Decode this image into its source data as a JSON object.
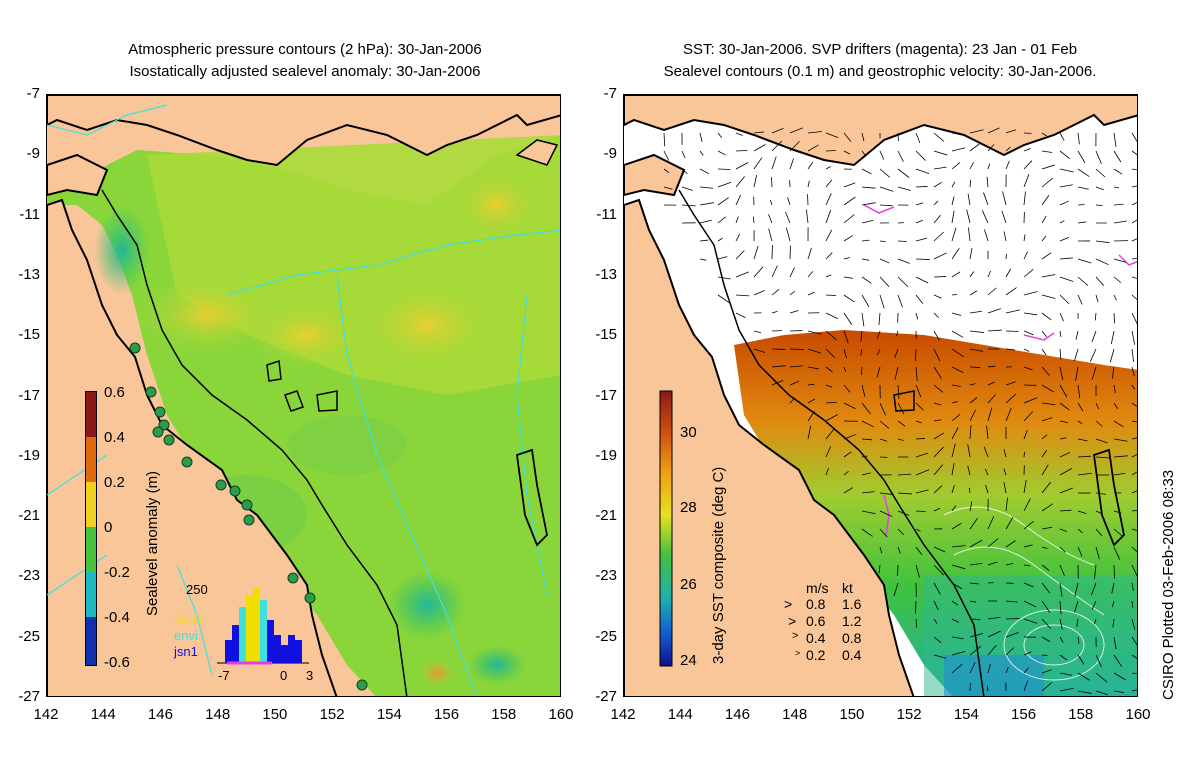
{
  "left_panel": {
    "title_line1": "Atmospheric pressure contours (2 hPa): 30-Jan-2006",
    "title_line2": "Isostatically adjusted sealevel anomaly: 30-Jan-2006",
    "colorbar_label": "Sealevel anomaly (m)",
    "colorbar_ticks": [
      "0.6",
      "0.4",
      "0.2",
      "0",
      "-0.2",
      "-0.4",
      "-0.6"
    ],
    "histogram": {
      "ymax_label": "250",
      "legend": [
        {
          "name": "GFO",
          "color": "#f0e000"
        },
        {
          "name": "envi",
          "color": "#40e0e0"
        },
        {
          "name": "jsn1",
          "color": "#1010e0"
        }
      ],
      "xticks": [
        "-7",
        "0",
        "3"
      ]
    }
  },
  "right_panel": {
    "title_line1": "SST: 30-Jan-2006. SVP drifters (magenta): 23 Jan - 01 Feb",
    "title_line2": "Sealevel contours (0.1 m) and geostrophic velocity: 30-Jan-2006.",
    "colorbar_label": "3-day SST composite (deg C)",
    "colorbar_ticks": [
      "30",
      "28",
      "26",
      "24"
    ],
    "speed_legend": {
      "header_ms": "m/s",
      "header_kt": "kt",
      "rows": [
        {
          "ms": "0.8",
          "kt": "1.6"
        },
        {
          "ms": "0.6",
          "kt": "1.2"
        },
        {
          "ms": "0.4",
          "kt": "0.8"
        },
        {
          "ms": "0.2",
          "kt": "0.4"
        }
      ]
    }
  },
  "axes": {
    "lat_labels": [
      "-7",
      "-9",
      "-11",
      "-13",
      "-15",
      "-17",
      "-19",
      "-21",
      "-23",
      "-25",
      "-27"
    ],
    "lon_labels": [
      "142",
      "144",
      "146",
      "148",
      "150",
      "152",
      "154",
      "156",
      "158",
      "160"
    ]
  },
  "credit": "CSIRO Plotted 03-Feb-2006 08:33",
  "colors": {
    "land": "#f9c69a",
    "sst_warm": "#c84a00",
    "sst_mid": "#3fc23f",
    "sea_green": "#5fd24a",
    "pressure_contour": "#40e0e0",
    "drifter": "#e040e0"
  }
}
